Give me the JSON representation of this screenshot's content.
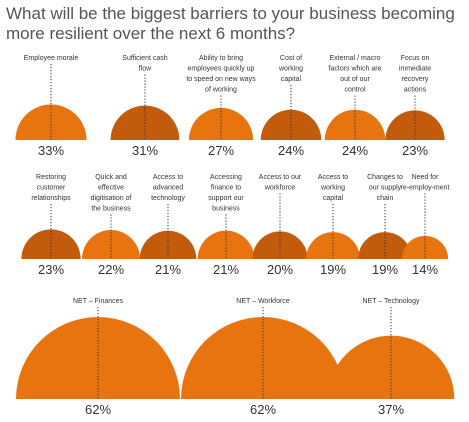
{
  "title": "What will be the biggest barriers to your business becoming more resilient over the next 6 months?",
  "colors": {
    "light": "#E8740F",
    "dark": "#C35B0C",
    "text": "#333333"
  },
  "chart_data": [
    {
      "type": "semicircle-area",
      "rows": [
        {
          "items": [
            {
              "label": "Employee morale",
              "value": 33,
              "display": "33%",
              "color": "light"
            },
            {
              "label": "Sufficient cash flow",
              "value": 31,
              "display": "31%",
              "color": "dark"
            },
            {
              "label": "Ability to bring employees quickly up to speed on new ways of working",
              "value": 27,
              "display": "27%",
              "color": "light"
            },
            {
              "label": "Cost of working capital",
              "value": 24,
              "display": "24%",
              "color": "dark"
            },
            {
              "label": "External / macro factors which are out of our control",
              "value": 24,
              "display": "24%",
              "color": "light"
            },
            {
              "label": "Focus on immediate recovery actions",
              "value": 23,
              "display": "23%",
              "color": "dark"
            }
          ]
        },
        {
          "items": [
            {
              "label": "Restoring customer relationships",
              "value": 23,
              "display": "23%",
              "color": "dark"
            },
            {
              "label": "Quick and effective digitisation of the business",
              "value": 22,
              "display": "22%",
              "color": "light"
            },
            {
              "label": "Access to advanced technology",
              "value": 21,
              "display": "21%",
              "color": "dark"
            },
            {
              "label": "Accessing finance to support our business",
              "value": 21,
              "display": "21%",
              "color": "light"
            },
            {
              "label": "Access to our workforce",
              "value": 20,
              "display": "20%",
              "color": "dark"
            },
            {
              "label": "Access to working capital",
              "value": 19,
              "display": "19%",
              "color": "light"
            },
            {
              "label": "Changes to our supply chain",
              "value": 19,
              "display": "19%",
              "color": "dark"
            },
            {
              "label": "Need for re-employ-ment",
              "value": 14,
              "display": "14%",
              "color": "light"
            }
          ]
        },
        {
          "items": [
            {
              "label": "NET – Finances",
              "value": 62,
              "display": "62%",
              "color": "light"
            },
            {
              "label": "NET – Workforce",
              "value": 62,
              "display": "62%",
              "color": "light"
            },
            {
              "label": "NET – Technology",
              "value": 37,
              "display": "37%",
              "color": "light"
            }
          ]
        }
      ]
    }
  ]
}
